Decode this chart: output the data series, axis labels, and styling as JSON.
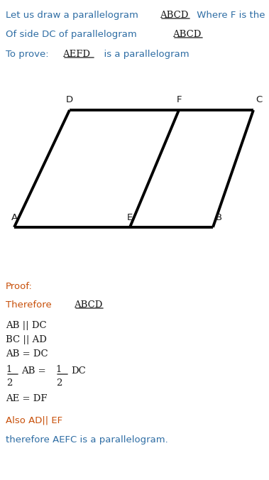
{
  "fig_width": 3.79,
  "fig_height": 6.76,
  "dpi": 100,
  "bg_color": "#ffffff",
  "orange_color": "#c8500a",
  "blue_color": "#2e6da4",
  "dark_color": "#1a1a1a",
  "line1_normal": "Let us draw a parallelogram ",
  "line1_special": "ABCD",
  "line1_rest": " Where F is the midpoint",
  "line2": "Of side DC of parallelogram ",
  "line2_special": "ABCD",
  "line3_start": "To prove: ",
  "line3_special": "AEFD",
  "line3_end": "  is a parallelogram",
  "proof_label": "Proof:",
  "therefore_text": "Therefore ",
  "therefore_special": "ABCD",
  "step1": "AB || DC",
  "step2": "BC || AD",
  "step3": "AB = DC",
  "step5": "AE = DF",
  "also_text": "Also AD|| EF",
  "conclusion": "therefore AEFC is a parallelogram.",
  "text_fontsize": 9.5,
  "serif_fontsize": 9.5,
  "label_fontsize": 9.5
}
